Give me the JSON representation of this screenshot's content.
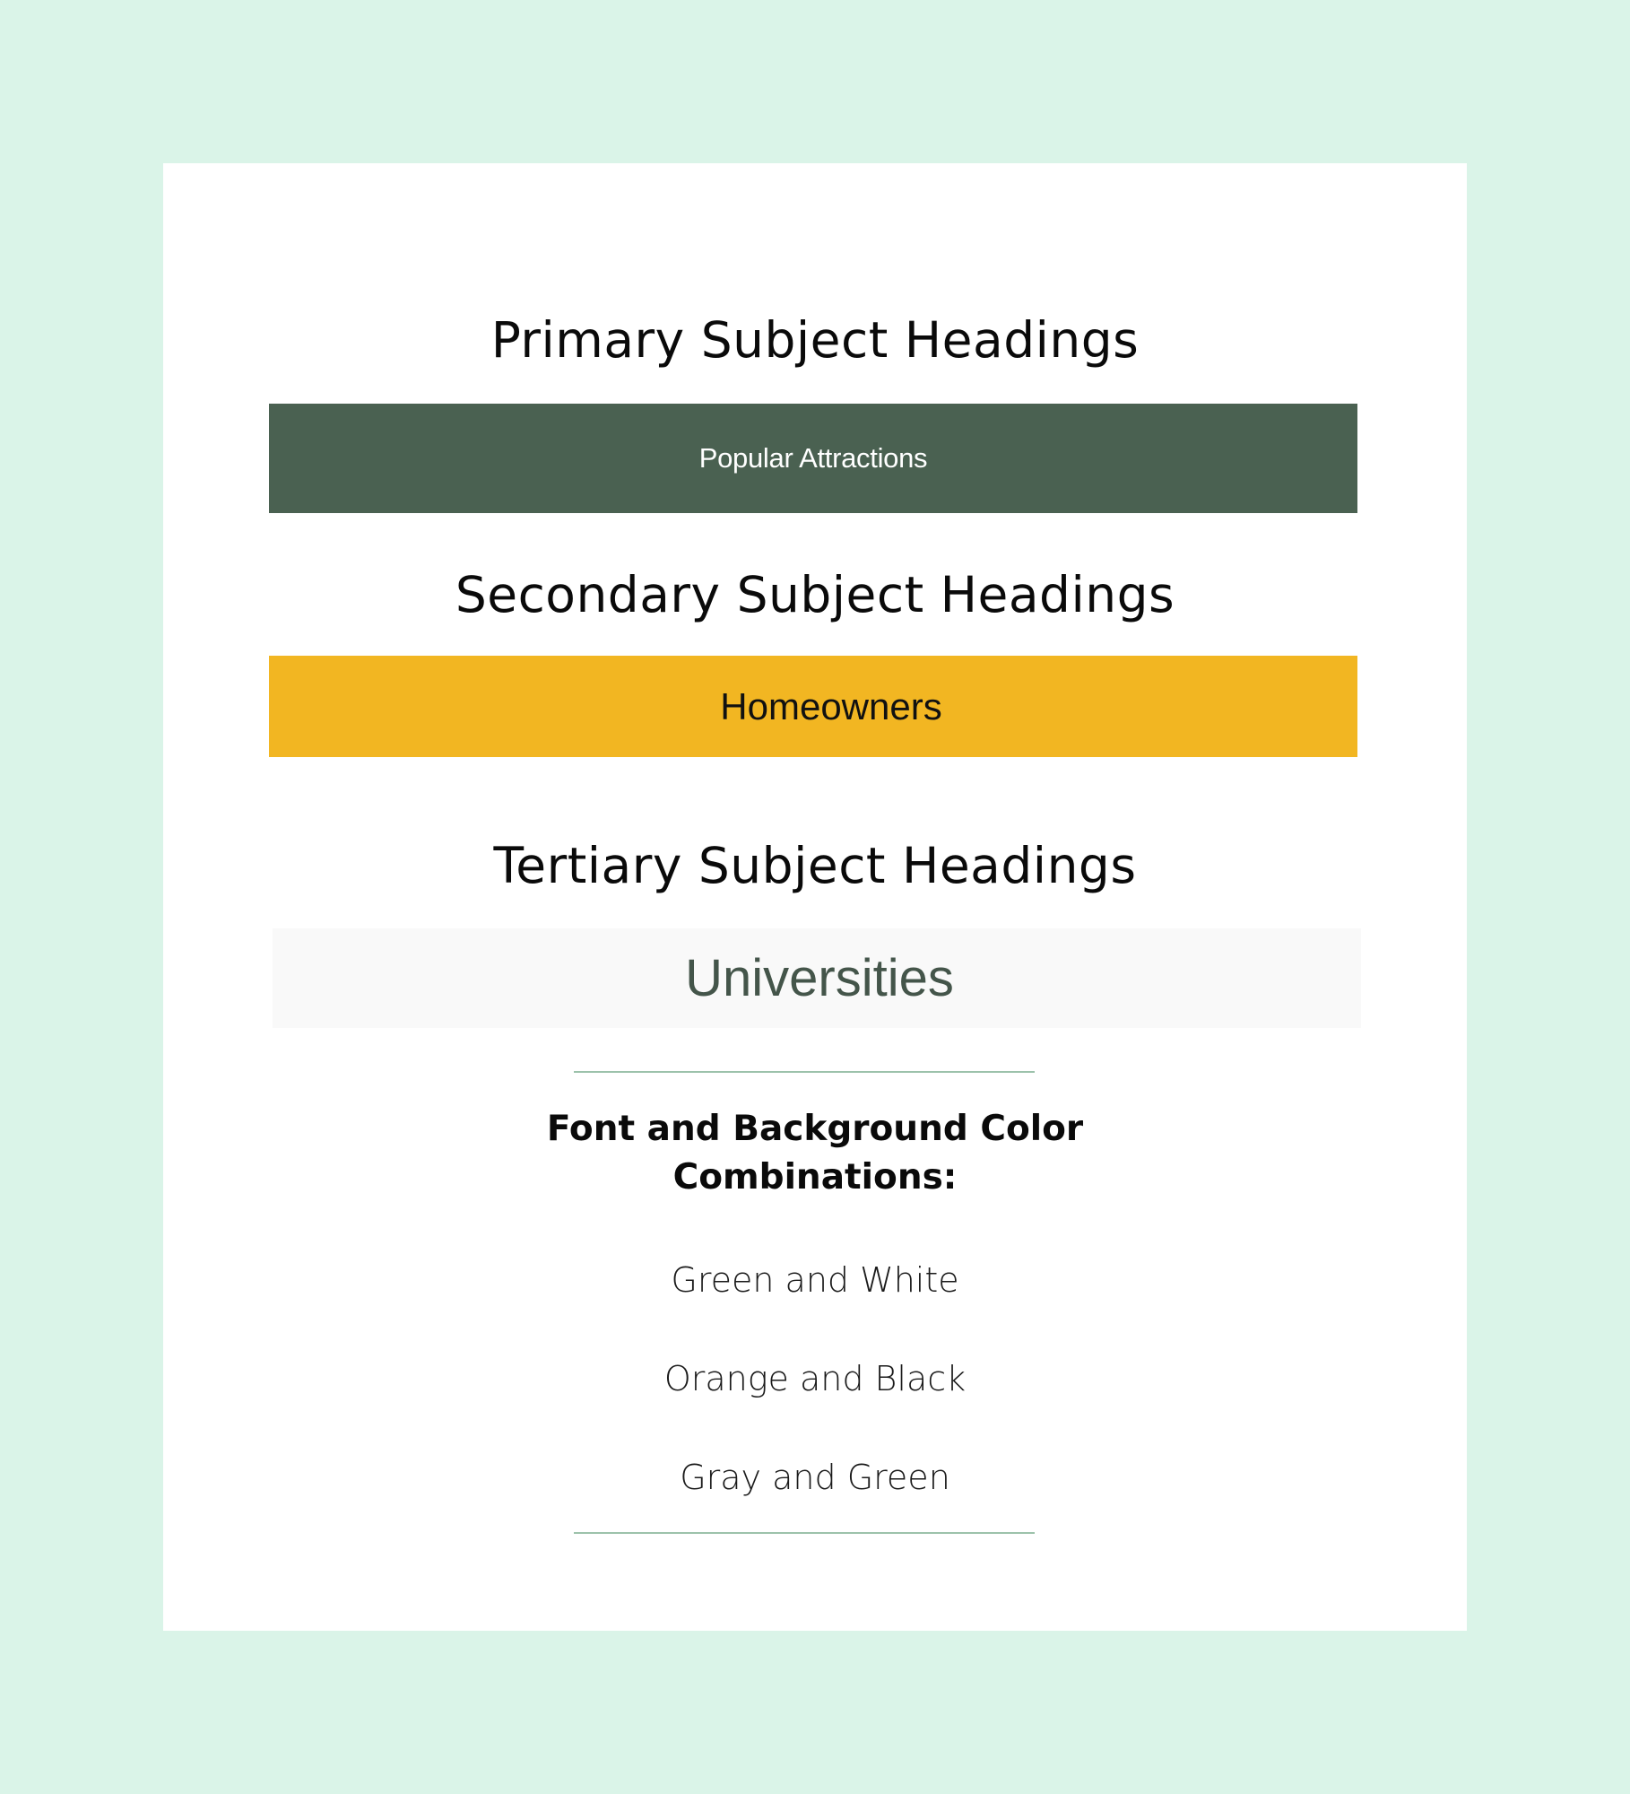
{
  "colors": {
    "page_background": "#daf4e8",
    "card_background": "#ffffff",
    "primary_banner": "#4a6151",
    "primary_banner_text": "#ffffff",
    "secondary_banner": "#f2b622",
    "secondary_banner_text": "#111111",
    "tertiary_banner": "#f9f9f9",
    "tertiary_banner_text": "#44554a",
    "divider": "#9cc2ab"
  },
  "sections": {
    "primary": {
      "title": "Primary Subject Headings",
      "example": "Popular Attractions"
    },
    "secondary": {
      "title": "Secondary Subject Headings",
      "example": "Homeowners"
    },
    "tertiary": {
      "title": "Tertiary Subject Headings",
      "example": "Universities"
    }
  },
  "combinations": {
    "heading_line1": "Font and Background Color",
    "heading_line2": "Combinations:",
    "items": [
      "Green and White",
      "Orange and Black",
      "Gray and Green"
    ]
  }
}
